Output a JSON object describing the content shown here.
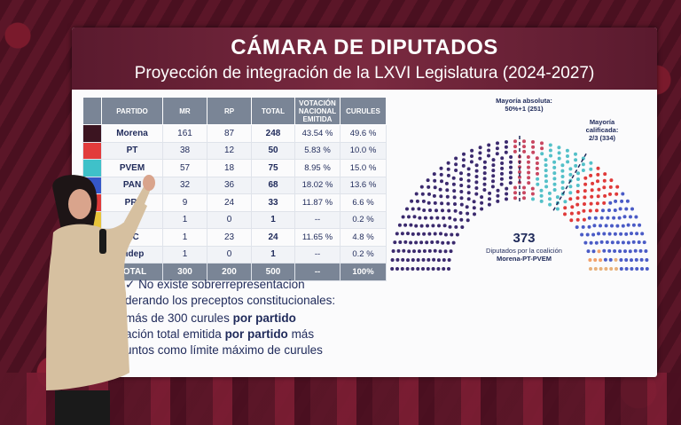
{
  "slide": {
    "title": "CÁMARA DE DIPUTADOS",
    "subtitle": "Proyección de integración de la LXVI Legislatura (2024-2027)"
  },
  "table": {
    "headers": [
      "PARTIDO",
      "MR",
      "RP",
      "TOTAL",
      "VOTACIÓN NACIONAL EMITIDA",
      "CURULES"
    ],
    "rows": [
      {
        "party": "Morena",
        "mr": "161",
        "rp": "87",
        "total": "248",
        "vote": "43.54 %",
        "seats": "49.6 %",
        "color": "#3b1420"
      },
      {
        "party": "PT",
        "mr": "38",
        "rp": "12",
        "total": "50",
        "vote": "5.83 %",
        "seats": "10.0 %",
        "color": "#e23c3c"
      },
      {
        "party": "PVEM",
        "mr": "57",
        "rp": "18",
        "total": "75",
        "vote": "8.95 %",
        "seats": "15.0 %",
        "color": "#3fc1c9"
      },
      {
        "party": "PAN",
        "mr": "32",
        "rp": "36",
        "total": "68",
        "vote": "18.02 %",
        "seats": "13.6 %",
        "color": "#3557c8"
      },
      {
        "party": "PRI",
        "mr": "9",
        "rp": "24",
        "total": "33",
        "vote": "11.87 %",
        "seats": "6.6 %",
        "color": "#e03a3a"
      },
      {
        "party": "",
        "mr": "1",
        "rp": "0",
        "total": "1",
        "vote": "--",
        "seats": "0.2 %",
        "color": "#e8c43a"
      },
      {
        "party": "MC",
        "mr": "1",
        "rp": "23",
        "total": "24",
        "vote": "11.65 %",
        "seats": "4.8 %",
        "color": "#f08a2a"
      },
      {
        "party": "Indep",
        "mr": "1",
        "rp": "0",
        "total": "1",
        "vote": "--",
        "seats": "0.2 %",
        "color": "#9a9a9a"
      }
    ],
    "total": {
      "label": "TOTAL",
      "mr": "300",
      "rp": "200",
      "total": "500",
      "vote": "--",
      "seats": "100%"
    }
  },
  "hemicycle": {
    "majority_abs_label": "Mayoría absoluta:",
    "majority_abs_value": "50%+1 (251)",
    "majority_qual_label": "Mayoría calificada:",
    "majority_qual_value": "2/3 (334)",
    "coalition_count": "373",
    "coalition_label": "Diputados por la coalición",
    "coalition_parties": "Morena-PT-PVEM",
    "seat_colors": [
      "#3b2a6e",
      "#c84660",
      "#53c0c8",
      "#e03a3a",
      "#f2a06a",
      "#4a5bc6",
      "#e8b07a"
    ]
  },
  "notes": {
    "line1": "No existe sobrerrepresentacion",
    "line2": "derando los preceptos constitucionales:",
    "line3a": "más de 300 curules ",
    "line3b": "por partido",
    "line4a": "ación total emitida ",
    "line4b": "por partido",
    "line4c": " más",
    "line5": "untos como límite máximo de curules"
  }
}
